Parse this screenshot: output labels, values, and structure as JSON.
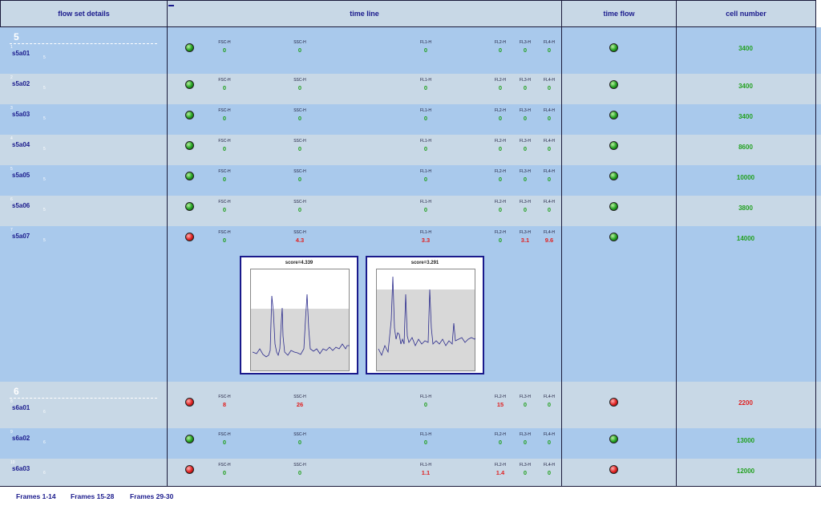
{
  "header": {
    "details_label": "flow set details",
    "timeline_label": "time line",
    "timeflow_label": "time flow",
    "cells_label": "cell number"
  },
  "groups": [
    {
      "number": "5",
      "start_row": 0
    },
    {
      "number": "6",
      "start_row": 7
    }
  ],
  "rows": [
    {
      "index": "1",
      "name": "s5a01",
      "group": "5",
      "status": "green",
      "params": [
        "0",
        "0",
        "0",
        "0",
        "0",
        "0"
      ],
      "bad": [
        false,
        false,
        false,
        false,
        false,
        false
      ],
      "flow": "green",
      "cells": "3400"
    },
    {
      "index": "2",
      "name": "s5a02",
      "group": "5",
      "status": "green",
      "params": [
        "0",
        "0",
        "0",
        "0",
        "0",
        "0"
      ],
      "bad": [
        false,
        false,
        false,
        false,
        false,
        false
      ],
      "flow": "green",
      "cells": "3400"
    },
    {
      "index": "3",
      "name": "s5a03",
      "group": "5",
      "status": "green",
      "params": [
        "0",
        "0",
        "0",
        "0",
        "0",
        "0"
      ],
      "bad": [
        false,
        false,
        false,
        false,
        false,
        false
      ],
      "flow": "green",
      "cells": "3400"
    },
    {
      "index": "4",
      "name": "s5a04",
      "group": "5",
      "status": "green",
      "params": [
        "0",
        "0",
        "0",
        "0",
        "0",
        "0"
      ],
      "bad": [
        false,
        false,
        false,
        false,
        false,
        false
      ],
      "flow": "green",
      "cells": "8600"
    },
    {
      "index": "5",
      "name": "s5a05",
      "group": "5",
      "status": "green",
      "params": [
        "0",
        "0",
        "0",
        "0",
        "0",
        "0"
      ],
      "bad": [
        false,
        false,
        false,
        false,
        false,
        false
      ],
      "flow": "green",
      "cells": "10000"
    },
    {
      "index": "6",
      "name": "s5a06",
      "group": "5",
      "status": "green",
      "params": [
        "0",
        "0",
        "0",
        "0",
        "0",
        "0"
      ],
      "bad": [
        false,
        false,
        false,
        false,
        false,
        false
      ],
      "flow": "green",
      "cells": "3800"
    },
    {
      "index": "7",
      "name": "s5a07",
      "group": "5",
      "status": "red",
      "params": [
        "0",
        "4.3",
        "3.3",
        "0",
        "3.1",
        "9.6"
      ],
      "bad": [
        false,
        true,
        true,
        false,
        true,
        true
      ],
      "flow": "green",
      "cells": "14000",
      "expanded": true,
      "plots": [
        {
          "title": "score=4.339"
        },
        {
          "title": "score=3.291"
        }
      ]
    },
    {
      "index": "8",
      "name": "s6a01",
      "group": "6",
      "status": "red",
      "params": [
        "8",
        "26",
        "0",
        "15",
        "0",
        "0"
      ],
      "bad": [
        true,
        true,
        false,
        true,
        false,
        false
      ],
      "flow": "red",
      "cells": "2200",
      "cells_bad": true
    },
    {
      "index": "9",
      "name": "s6a02",
      "group": "6",
      "status": "green",
      "params": [
        "0",
        "0",
        "0",
        "0",
        "0",
        "0"
      ],
      "bad": [
        false,
        false,
        false,
        false,
        false,
        false
      ],
      "flow": "green",
      "cells": "13000"
    },
    {
      "index": "10",
      "name": "s6a03",
      "group": "6",
      "status": "red",
      "params": [
        "0",
        "0",
        "1.1",
        "1.4",
        "0",
        "0"
      ],
      "bad": [
        false,
        false,
        true,
        true,
        false,
        false
      ],
      "flow": "red",
      "cells": "12000"
    }
  ],
  "param_labels": [
    "FSC-H",
    "SSC-H",
    "FL1-H",
    "FL2-H",
    "FL3-H",
    "FL4-H"
  ],
  "colors": {
    "row_a": "#a9c9ec",
    "row_b": "#c8d8e6",
    "ok": "#22a020",
    "bad": "#e02020",
    "name": "#1a1a8c"
  },
  "footer": {
    "links": [
      "Frames 1-14",
      "Frames 15-28",
      "Frames 29-30"
    ]
  }
}
